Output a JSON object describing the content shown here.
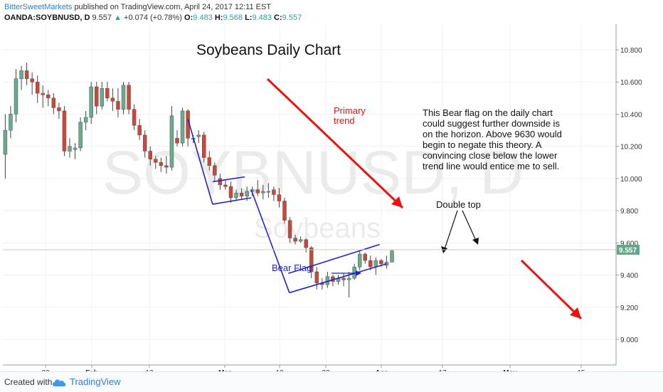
{
  "header": {
    "author": "BitterSweetMarkets",
    "published": "published on TradingView.com, April 24, 2017 12:11 EST",
    "symbol": "OANDA:SOYBNUSD, D",
    "last": "9.557",
    "change": "+0.074 (+0.78%)",
    "o_label": "O:",
    "o_val": "9.483",
    "h_label": "H:",
    "h_val": "9.568",
    "l_label": "L:",
    "l_val": "9.483",
    "c_label": "C:",
    "c_val": "9.557"
  },
  "watermark": {
    "symbol": "SOYBNUSD, D",
    "name": "Soybeans"
  },
  "annotations": {
    "title": "Soybeans Daily Chart",
    "primary_trend": [
      "Primary",
      "trend"
    ],
    "bear_flag": "Bear Flag",
    "double_top": "Double top",
    "note": [
      "This Bear flag on the daily chart",
      "could suggest further downside is",
      "on the horizon. Above 9630 would",
      "begin to negate this theory. A",
      "convincing close below the lower",
      "trend line would entice me to sell."
    ]
  },
  "footer": {
    "created": "Created with",
    "brand": "TradingView"
  },
  "colors": {
    "up": "#6aaa8e",
    "down": "#c8493c",
    "line": "#2222cc",
    "arrow": "#ee1111",
    "grid": "#eef0f3",
    "price_tag": "#5fa98a"
  },
  "chart_data": {
    "type": "candlestick",
    "title": "Soybeans Daily Chart",
    "symbol": "OANDA:SOYBNUSD",
    "timeframe": "D",
    "ylim": [
      8.95,
      10.9
    ],
    "yticks": [
      "10.800",
      "10.600",
      "10.400",
      "10.200",
      "10.000",
      "9.800",
      "9.600",
      "9.400",
      "9.200",
      "9.000"
    ],
    "xticks": [
      "23",
      "Feb",
      "13",
      "Mar",
      "13",
      "22",
      "Apr",
      "17",
      "May",
      "15"
    ],
    "last_price": "9.557",
    "candles": [
      {
        "o": 10.15,
        "h": 10.4,
        "l": 10.0,
        "c": 10.3
      },
      {
        "o": 10.3,
        "h": 10.45,
        "l": 10.25,
        "c": 10.4
      },
      {
        "o": 10.4,
        "h": 10.68,
        "l": 10.35,
        "c": 10.62
      },
      {
        "o": 10.62,
        "h": 10.7,
        "l": 10.55,
        "c": 10.67
      },
      {
        "o": 10.67,
        "h": 10.72,
        "l": 10.58,
        "c": 10.62
      },
      {
        "o": 10.62,
        "h": 10.66,
        "l": 10.52,
        "c": 10.6
      },
      {
        "o": 10.6,
        "h": 10.64,
        "l": 10.47,
        "c": 10.53
      },
      {
        "o": 10.53,
        "h": 10.58,
        "l": 10.44,
        "c": 10.52
      },
      {
        "o": 10.52,
        "h": 10.55,
        "l": 10.45,
        "c": 10.5
      },
      {
        "o": 10.5,
        "h": 10.53,
        "l": 10.4,
        "c": 10.44
      },
      {
        "o": 10.44,
        "h": 10.47,
        "l": 10.37,
        "c": 10.42
      },
      {
        "o": 10.42,
        "h": 10.45,
        "l": 10.14,
        "c": 10.17
      },
      {
        "o": 10.17,
        "h": 10.25,
        "l": 10.13,
        "c": 10.2
      },
      {
        "o": 10.18,
        "h": 10.22,
        "l": 10.12,
        "c": 10.19
      },
      {
        "o": 10.19,
        "h": 10.38,
        "l": 10.17,
        "c": 10.35
      },
      {
        "o": 10.35,
        "h": 10.42,
        "l": 10.3,
        "c": 10.38
      },
      {
        "o": 10.38,
        "h": 10.6,
        "l": 10.34,
        "c": 10.57
      },
      {
        "o": 10.57,
        "h": 10.6,
        "l": 10.4,
        "c": 10.45
      },
      {
        "o": 10.45,
        "h": 10.6,
        "l": 10.43,
        "c": 10.56
      },
      {
        "o": 10.56,
        "h": 10.6,
        "l": 10.48,
        "c": 10.5
      },
      {
        "o": 10.5,
        "h": 10.56,
        "l": 10.42,
        "c": 10.48
      },
      {
        "o": 10.48,
        "h": 10.56,
        "l": 10.38,
        "c": 10.43
      },
      {
        "o": 10.43,
        "h": 10.6,
        "l": 10.4,
        "c": 10.58
      },
      {
        "o": 10.58,
        "h": 10.6,
        "l": 10.4,
        "c": 10.43
      },
      {
        "o": 10.43,
        "h": 10.46,
        "l": 10.3,
        "c": 10.33
      },
      {
        "o": 10.33,
        "h": 10.37,
        "l": 10.24,
        "c": 10.27
      },
      {
        "o": 10.27,
        "h": 10.3,
        "l": 10.13,
        "c": 10.17
      },
      {
        "o": 10.17,
        "h": 10.2,
        "l": 10.08,
        "c": 10.12
      },
      {
        "o": 10.12,
        "h": 10.14,
        "l": 10.06,
        "c": 10.1
      },
      {
        "o": 10.1,
        "h": 10.13,
        "l": 10.04,
        "c": 10.08
      },
      {
        "o": 10.08,
        "h": 10.14,
        "l": 10.03,
        "c": 10.07
      },
      {
        "o": 10.07,
        "h": 10.45,
        "l": 10.05,
        "c": 10.39
      },
      {
        "o": 10.25,
        "h": 10.3,
        "l": 10.2,
        "c": 10.22
      },
      {
        "o": 10.22,
        "h": 10.44,
        "l": 10.2,
        "c": 10.42
      },
      {
        "o": 10.42,
        "h": 10.43,
        "l": 10.2,
        "c": 10.25
      },
      {
        "o": 10.25,
        "h": 10.27,
        "l": 10.22,
        "c": 10.25
      },
      {
        "o": 10.26,
        "h": 10.3,
        "l": 10.22,
        "c": 10.27
      },
      {
        "o": 10.27,
        "h": 10.29,
        "l": 10.1,
        "c": 10.13
      },
      {
        "o": 10.13,
        "h": 10.17,
        "l": 10.05,
        "c": 10.08
      },
      {
        "o": 10.08,
        "h": 10.1,
        "l": 9.98,
        "c": 10.02
      },
      {
        "o": 10.0,
        "h": 10.03,
        "l": 9.93,
        "c": 9.96
      },
      {
        "o": 9.96,
        "h": 9.99,
        "l": 9.93,
        "c": 9.95
      },
      {
        "o": 9.95,
        "h": 9.98,
        "l": 9.85,
        "c": 9.88
      },
      {
        "o": 9.88,
        "h": 9.93,
        "l": 9.86,
        "c": 9.91
      },
      {
        "o": 9.91,
        "h": 9.94,
        "l": 9.87,
        "c": 9.89
      },
      {
        "o": 9.89,
        "h": 9.95,
        "l": 9.86,
        "c": 9.92
      },
      {
        "o": 9.92,
        "h": 9.95,
        "l": 9.89,
        "c": 9.93
      },
      {
        "o": 9.93,
        "h": 9.99,
        "l": 9.89,
        "c": 9.91
      },
      {
        "o": 9.91,
        "h": 9.96,
        "l": 9.87,
        "c": 9.92
      },
      {
        "o": 9.92,
        "h": 9.97,
        "l": 9.88,
        "c": 9.92
      },
      {
        "o": 9.93,
        "h": 9.95,
        "l": 9.86,
        "c": 9.9
      },
      {
        "o": 9.9,
        "h": 9.94,
        "l": 9.82,
        "c": 9.86
      },
      {
        "o": 9.86,
        "h": 9.88,
        "l": 9.72,
        "c": 9.74
      },
      {
        "o": 9.74,
        "h": 9.76,
        "l": 9.6,
        "c": 9.63
      },
      {
        "o": 9.63,
        "h": 9.65,
        "l": 9.59,
        "c": 9.61
      },
      {
        "o": 9.61,
        "h": 9.64,
        "l": 9.6,
        "c": 9.62
      },
      {
        "o": 9.62,
        "h": 9.63,
        "l": 9.54,
        "c": 9.57
      },
      {
        "o": 9.57,
        "h": 9.58,
        "l": 9.38,
        "c": 9.42
      },
      {
        "o": 9.42,
        "h": 9.45,
        "l": 9.31,
        "c": 9.35
      },
      {
        "o": 9.35,
        "h": 9.38,
        "l": 9.31,
        "c": 9.34
      },
      {
        "o": 9.34,
        "h": 9.42,
        "l": 9.32,
        "c": 9.39
      },
      {
        "o": 9.39,
        "h": 9.4,
        "l": 9.33,
        "c": 9.36
      },
      {
        "o": 9.36,
        "h": 9.4,
        "l": 9.34,
        "c": 9.38
      },
      {
        "o": 9.38,
        "h": 9.41,
        "l": 9.33,
        "c": 9.37
      },
      {
        "o": 9.37,
        "h": 9.42,
        "l": 9.26,
        "c": 9.38
      },
      {
        "o": 9.38,
        "h": 9.47,
        "l": 9.37,
        "c": 9.45
      },
      {
        "o": 9.45,
        "h": 9.55,
        "l": 9.43,
        "c": 9.53
      },
      {
        "o": 9.53,
        "h": 9.54,
        "l": 9.47,
        "c": 9.49
      },
      {
        "o": 9.49,
        "h": 9.52,
        "l": 9.43,
        "c": 9.45
      },
      {
        "o": 9.45,
        "h": 9.51,
        "l": 9.4,
        "c": 9.49
      },
      {
        "o": 9.49,
        "h": 9.5,
        "l": 9.45,
        "c": 9.47
      },
      {
        "o": 9.46,
        "h": 9.52,
        "l": 9.44,
        "c": 9.48
      },
      {
        "o": 9.48,
        "h": 9.56,
        "l": 9.48,
        "c": 9.55
      }
    ],
    "trendlines": [
      {
        "label": "flagpole-1",
        "from": [
          34,
          10.37
        ],
        "to": [
          38.6,
          9.84
        ]
      },
      {
        "label": "flag-upper",
        "from": [
          38.6,
          9.98
        ],
        "to": [
          44.6,
          10.01
        ]
      },
      {
        "label": "flag-lower",
        "from": [
          38.6,
          9.84
        ],
        "to": [
          45.8,
          9.88
        ]
      },
      {
        "label": "flagpole-2",
        "from": [
          45.8,
          9.93
        ],
        "to": [
          52.9,
          9.29
        ]
      },
      {
        "label": "channel-lower",
        "from": [
          52.9,
          9.29
        ],
        "to": [
          71.0,
          9.47
        ]
      },
      {
        "label": "channel-upper",
        "from": [
          52.7,
          9.41
        ],
        "to": [
          69.7,
          9.59
        ]
      }
    ]
  }
}
